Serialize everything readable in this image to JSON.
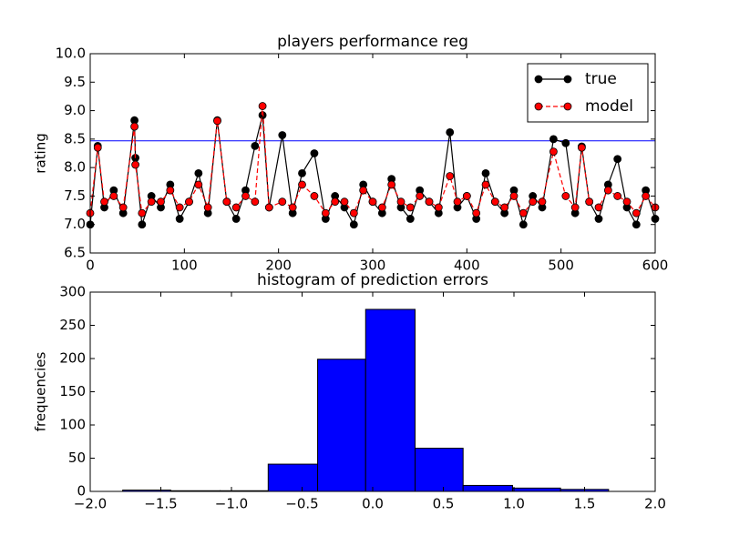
{
  "chart_data": [
    {
      "type": "line",
      "title": "players performance reg",
      "y_label": "rating",
      "x": [
        0,
        8,
        15,
        25,
        35,
        47,
        48,
        55,
        65,
        75,
        85,
        95,
        105,
        115,
        125,
        135,
        145,
        155,
        165,
        175,
        183,
        190,
        204,
        215,
        225,
        238,
        250,
        260,
        270,
        280,
        290,
        300,
        310,
        320,
        330,
        340,
        350,
        360,
        370,
        382,
        390,
        400,
        410,
        420,
        430,
        440,
        450,
        460,
        470,
        480,
        492,
        505,
        515,
        522,
        530,
        540,
        550,
        560,
        570,
        580,
        590,
        600
      ],
      "series": [
        {
          "name": "true",
          "color": "#000000",
          "dashed": false,
          "values": [
            7.0,
            8.38,
            7.3,
            7.6,
            7.2,
            8.83,
            8.17,
            7.0,
            7.5,
            7.3,
            7.7,
            7.1,
            7.4,
            7.9,
            7.2,
            8.83,
            7.4,
            7.1,
            7.6,
            8.38,
            8.92,
            7.3,
            8.57,
            7.2,
            7.9,
            8.25,
            7.1,
            7.5,
            7.3,
            7.0,
            7.7,
            7.4,
            7.2,
            7.8,
            7.3,
            7.1,
            7.6,
            7.4,
            7.2,
            8.62,
            7.3,
            7.5,
            7.1,
            7.9,
            7.4,
            7.2,
            7.6,
            7.0,
            7.5,
            7.3,
            8.5,
            8.43,
            7.2,
            8.37,
            7.4,
            7.1,
            7.7,
            8.15,
            7.3,
            7.0,
            7.6,
            7.1
          ]
        },
        {
          "name": "model",
          "color": "#ff0000",
          "dashed": true,
          "values": [
            7.2,
            8.35,
            7.4,
            7.5,
            7.3,
            8.72,
            8.05,
            7.2,
            7.4,
            7.4,
            7.6,
            7.3,
            7.4,
            7.7,
            7.3,
            8.82,
            7.4,
            7.3,
            7.5,
            7.4,
            9.08,
            7.3,
            7.4,
            7.3,
            7.7,
            7.5,
            7.2,
            7.4,
            7.4,
            7.2,
            7.6,
            7.4,
            7.3,
            7.7,
            7.4,
            7.3,
            7.5,
            7.4,
            7.3,
            7.85,
            7.4,
            7.5,
            7.2,
            7.7,
            7.4,
            7.3,
            7.5,
            7.2,
            7.4,
            7.4,
            8.28,
            7.5,
            7.3,
            8.35,
            7.4,
            7.3,
            7.6,
            7.5,
            7.4,
            7.2,
            7.5,
            7.3
          ]
        }
      ],
      "hline": 8.47,
      "hline_color": "#0000ff",
      "xlim": [
        0,
        600
      ],
      "xticks": [
        0,
        100,
        200,
        300,
        400,
        500,
        600
      ],
      "ylim": [
        6.5,
        10
      ],
      "yticks": [
        6.5,
        {
          "value": 7,
          "label": "7.0"
        },
        7.5,
        {
          "value": 8,
          "label": "8.0"
        },
        8.5,
        {
          "value": 9,
          "label": "9.0"
        },
        9.5,
        {
          "value": 10,
          "label": "10.0"
        }
      ],
      "legend": "upper right"
    },
    {
      "type": "histogram",
      "title": "histogram of prediction errors",
      "y_label": "frequencies",
      "bins": [
        -1.77,
        -1.43,
        -1.08,
        -0.74,
        -0.39,
        -0.05,
        0.3,
        0.64,
        0.99,
        1.33,
        1.67
      ],
      "counts": [
        2,
        1,
        1,
        41,
        199,
        274,
        65,
        9,
        5,
        3
      ],
      "color": "#0000ff",
      "xlim": [
        -2,
        2
      ],
      "xticks": [
        {
          "value": -2,
          "label": "−2.0"
        },
        {
          "value": -1.5,
          "label": "−1.5"
        },
        {
          "value": -1,
          "label": "−1.0"
        },
        {
          "value": -0.5,
          "label": "−0.5"
        },
        {
          "value": 0,
          "label": "0.0"
        },
        0.5,
        {
          "value": 1,
          "label": "1.0"
        },
        1.5,
        {
          "value": 2,
          "label": "2.0"
        }
      ],
      "ylim": [
        0,
        300
      ],
      "yticks": [
        0,
        50,
        100,
        150,
        200,
        250,
        300
      ]
    }
  ]
}
